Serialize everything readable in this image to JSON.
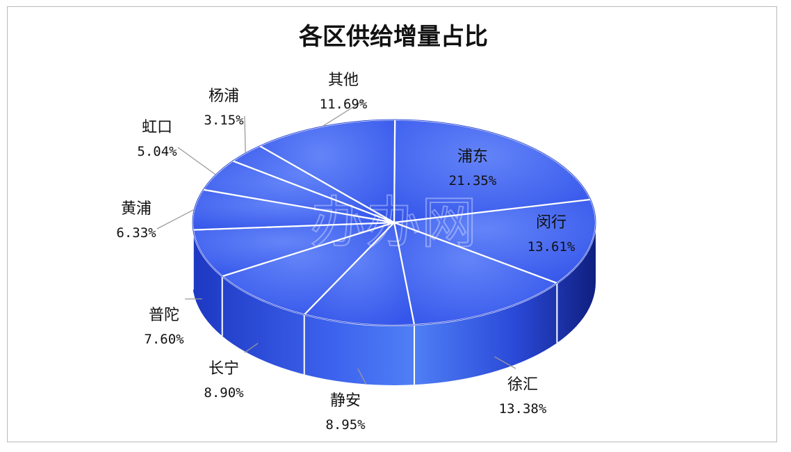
{
  "chart_data": {
    "type": "pie",
    "title": "各区供给增量占比",
    "slices": [
      {
        "label": "浦东",
        "value": 21.35,
        "value_label": "21.35%"
      },
      {
        "label": "闵行",
        "value": 13.61,
        "value_label": "13.61%"
      },
      {
        "label": "徐汇",
        "value": 13.38,
        "value_label": "13.38%"
      },
      {
        "label": "静安",
        "value": 8.95,
        "value_label": "8.95%"
      },
      {
        "label": "长宁",
        "value": 8.9,
        "value_label": "8.90%"
      },
      {
        "label": "普陀",
        "value": 7.6,
        "value_label": "7.60%"
      },
      {
        "label": "黄浦",
        "value": 6.33,
        "value_label": "6.33%"
      },
      {
        "label": "虹口",
        "value": 5.04,
        "value_label": "5.04%"
      },
      {
        "label": "杨浦",
        "value": 3.15,
        "value_label": "3.15%"
      },
      {
        "label": "其他",
        "value": 11.69,
        "value_label": "11.69%"
      }
    ],
    "style": "3d-pie",
    "colors": {
      "top": "#3f62f0",
      "top_light": "#5a7cf7",
      "side_dark": "#1733b8",
      "side_light": "#4d79f2",
      "divider": "#ffffff",
      "leader": "#9a9a9a"
    },
    "watermark": "办办网"
  }
}
